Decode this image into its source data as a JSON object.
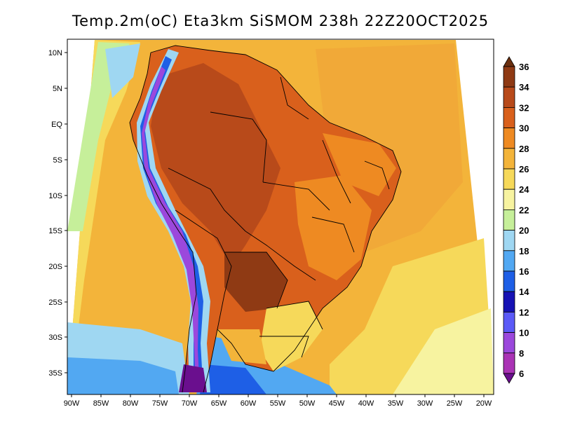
{
  "title": "Temp.2m(oC) Eta3km SiSMOM 238h 22Z20OCT2025",
  "lat_labels": [
    "10N",
    "5N",
    "EQ",
    "5S",
    "10S",
    "15S",
    "20S",
    "25S",
    "30S",
    "35S"
  ],
  "lon_labels": [
    "90W",
    "85W",
    "80W",
    "75W",
    "70W",
    "65W",
    "60W",
    "55W",
    "50W",
    "45W",
    "40W",
    "35W",
    "30W",
    "25W",
    "20W"
  ],
  "colorbar": {
    "labels": [
      "36",
      "34",
      "32",
      "30",
      "28",
      "26",
      "24",
      "22",
      "20",
      "18",
      "16",
      "14",
      "12",
      "10",
      "8",
      "6"
    ],
    "colors": [
      "#6b2f0f",
      "#8f3a14",
      "#b84a1a",
      "#d9601c",
      "#ee8a22",
      "#f3b43a",
      "#f6d95a",
      "#f7f3a0",
      "#c6ef9a",
      "#9fd7f2",
      "#52a8f2",
      "#1e5fe6",
      "#1612b4",
      "#5b5af7",
      "#9b48dc",
      "#aa33b5",
      "#6a0f8e"
    ]
  }
}
